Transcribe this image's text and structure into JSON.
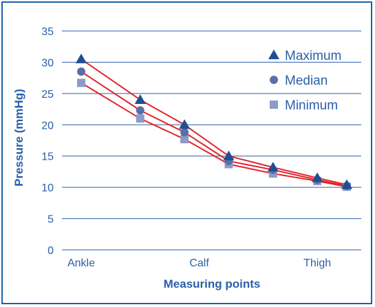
{
  "chart_data": {
    "type": "line",
    "xlabel": "Measuring points",
    "ylabel": "Pressure (mmHg)",
    "ylim": [
      0,
      35
    ],
    "yticks": [
      0,
      5,
      10,
      15,
      20,
      25,
      30,
      35
    ],
    "x_tick_labels": [
      {
        "x": 0,
        "label": "Ankle"
      },
      {
        "x": 4,
        "label": "Calf"
      },
      {
        "x": 8,
        "label": "Thigh"
      }
    ],
    "xlim": [
      0,
      9
    ],
    "grid": "horizontal",
    "legend_position": "top-right",
    "line_color": "#e0232a",
    "marker_color": "#1f4e93",
    "series": [
      {
        "name": "Maximum",
        "marker": "triangle",
        "color": "#1f4e93",
        "x": [
          0,
          2,
          3.5,
          5,
          6.5,
          8,
          9
        ],
        "values": [
          30.5,
          24,
          20,
          15,
          13.2,
          11.5,
          10.4
        ]
      },
      {
        "name": "Median",
        "marker": "circle",
        "color": "#5a6fa6",
        "x": [
          0,
          2,
          3.5,
          5,
          6.5,
          8,
          9
        ],
        "values": [
          28.5,
          22.3,
          18.8,
          14.2,
          12.8,
          11.2,
          10.2
        ]
      },
      {
        "name": "Minimum",
        "marker": "square",
        "color": "#8c9bc8",
        "x": [
          0,
          2,
          3.5,
          5,
          6.5,
          8,
          9
        ],
        "values": [
          26.7,
          21,
          17.7,
          13.7,
          12.2,
          11,
          10.1
        ]
      }
    ]
  }
}
